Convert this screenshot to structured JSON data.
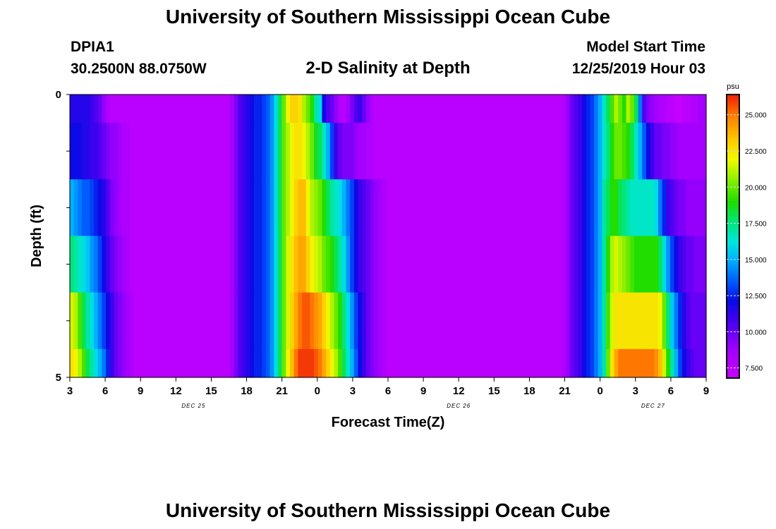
{
  "header": {
    "title": "University of Southern Mississippi Ocean Cube",
    "station": "DPIA1",
    "coords": "30.2500N 88.0750W",
    "subtitle": "2-D Salinity at Depth",
    "model_label": "Model Start Time",
    "model_time": "12/25/2019 Hour 03"
  },
  "footer": {
    "title": "University of Southern Mississippi Ocean Cube"
  },
  "chart_data": {
    "type": "heatmap",
    "xlabel": "Forecast Time(Z)",
    "ylabel": "Depth (ft)",
    "x_tick_labels": [
      "3",
      "6",
      "9",
      "12",
      "15",
      "18",
      "21",
      "0",
      "3",
      "6",
      "9",
      "12",
      "15",
      "18",
      "21",
      "0",
      "3",
      "6",
      "9"
    ],
    "x_range_hours": [
      0,
      54
    ],
    "day_labels": [
      {
        "text": "DEC 25",
        "hour": 10.5
      },
      {
        "text": "DEC 26",
        "hour": 33
      },
      {
        "text": "DEC 27",
        "hour": 49.5
      }
    ],
    "y_tick_labels": [
      "0",
      "5"
    ],
    "ylim": [
      0,
      5
    ],
    "colorbar": {
      "unit": "psu",
      "ticks": [
        "25.000",
        "22.500",
        "20.000",
        "17.500",
        "15.000",
        "12.500",
        "10.000",
        "7.500"
      ],
      "range": [
        6.8,
        26.4
      ]
    },
    "rows": [
      {
        "depth": 0.5,
        "values": [
          11.5,
          11.5,
          11.5,
          11.5,
          11.5,
          11.0,
          10.5,
          10.0,
          9.0,
          8.0,
          7.5,
          7.5,
          7.5,
          7.5,
          7.5,
          7.5,
          7.5,
          7.5,
          7.5,
          7.5,
          7.5,
          7.5,
          7.5,
          7.5,
          7.5,
          7.5,
          7.5,
          7.5,
          7.5,
          7.5,
          7.5,
          7.5,
          7.5,
          7.5,
          7.5,
          7.5,
          7.5,
          7.5,
          7.5,
          7.5,
          8.5,
          9.5,
          10.5,
          11.0,
          11.5,
          12.0,
          12.5,
          12.5,
          13.0,
          13.5,
          14.5,
          16.0,
          18.0,
          20.0,
          22.0,
          23.0,
          23.0,
          22.5,
          21.0,
          20.0,
          19.0,
          17.0,
          16.0,
          12.0,
          10.5,
          10.0,
          9.0,
          8.0,
          7.5,
          8.5,
          9.5,
          10.5,
          11.0,
          10.0,
          9.0,
          8.0,
          7.5,
          7.5,
          7.5,
          7.5,
          7.5,
          7.5,
          7.5,
          7.5,
          7.5,
          7.5,
          7.5,
          7.5,
          7.5,
          7.5,
          7.5,
          7.5,
          7.5,
          7.5,
          7.5,
          7.5,
          7.5,
          7.5,
          7.5,
          7.5,
          7.5,
          7.5,
          7.5,
          7.5,
          7.5,
          7.5,
          7.5,
          7.5,
          7.5,
          7.5,
          7.5,
          7.5,
          7.5,
          7.5,
          7.5,
          7.5,
          7.5,
          7.5,
          7.5,
          7.5,
          7.5,
          7.5,
          7.5,
          8.0,
          9.0,
          10.0,
          10.5,
          11.0,
          12.0,
          12.5,
          13.0,
          14.0,
          15.0,
          16.5,
          18.0,
          19.5,
          21.0,
          20.0,
          19.0,
          21.0,
          20.0,
          18.0,
          14.0,
          10.5,
          9.5,
          9.0,
          8.5,
          8.0,
          8.0,
          7.5,
          7.5,
          7.0,
          7.0,
          7.5,
          7.5,
          8.0,
          8.0,
          8.5,
          8.5
        ]
      },
      {
        "depth": 1.5,
        "values": [
          12.0,
          12.0,
          12.0,
          11.5,
          11.5,
          11.0,
          11.0,
          10.5,
          10.0,
          9.5,
          9.0,
          9.0,
          8.5,
          8.0,
          8.0,
          7.5,
          7.5,
          7.5,
          7.5,
          7.5,
          7.5,
          7.5,
          7.5,
          7.5,
          7.5,
          7.5,
          7.5,
          7.5,
          7.5,
          7.5,
          7.5,
          7.5,
          7.5,
          7.5,
          7.5,
          7.5,
          7.5,
          7.5,
          7.5,
          7.5,
          8.5,
          9.5,
          10.5,
          11.0,
          11.5,
          12.0,
          12.5,
          12.5,
          13.0,
          13.5,
          14.5,
          16.0,
          18.0,
          20.0,
          21.0,
          22.0,
          22.5,
          22.5,
          22.0,
          21.0,
          20.0,
          18.5,
          18.0,
          16.5,
          15.0,
          13.0,
          11.0,
          10.0,
          9.5,
          9.5,
          9.5,
          9.0,
          8.5,
          8.5,
          8.0,
          8.0,
          7.5,
          7.5,
          7.5,
          7.5,
          7.5,
          7.5,
          7.5,
          7.5,
          7.5,
          7.5,
          7.5,
          7.5,
          7.5,
          7.5,
          7.5,
          7.5,
          7.5,
          7.5,
          7.5,
          7.5,
          7.5,
          7.5,
          7.5,
          7.5,
          7.5,
          7.5,
          7.5,
          7.5,
          7.5,
          7.5,
          7.5,
          7.5,
          7.5,
          7.5,
          7.5,
          7.5,
          7.5,
          7.5,
          7.5,
          7.5,
          7.5,
          7.5,
          7.5,
          7.5,
          7.5,
          7.5,
          7.5,
          8.0,
          9.0,
          10.0,
          10.5,
          11.0,
          12.0,
          12.5,
          13.0,
          14.0,
          15.0,
          16.5,
          17.5,
          19.0,
          20.0,
          20.0,
          19.5,
          19.0,
          18.0,
          16.5,
          15.0,
          13.5,
          12.0,
          11.0,
          10.0,
          10.0,
          9.5,
          9.5,
          9.0,
          9.0,
          8.5,
          8.5,
          8.5,
          8.5,
          8.5,
          8.5,
          8.5
        ]
      },
      {
        "depth": 2.5,
        "values": [
          15.0,
          14.5,
          14.0,
          13.5,
          13.5,
          13.0,
          12.5,
          12.0,
          11.5,
          10.5,
          9.5,
          9.0,
          8.5,
          8.0,
          8.0,
          7.5,
          7.5,
          7.5,
          7.5,
          7.5,
          7.5,
          7.5,
          7.5,
          7.5,
          7.5,
          7.5,
          7.5,
          7.5,
          7.5,
          7.5,
          7.5,
          7.5,
          7.5,
          7.5,
          7.5,
          7.5,
          7.5,
          7.5,
          7.5,
          7.5,
          8.5,
          9.5,
          10.5,
          11.0,
          11.5,
          12.0,
          12.5,
          12.5,
          13.0,
          13.5,
          14.5,
          16.0,
          18.0,
          20.0,
          21.0,
          22.0,
          23.0,
          23.5,
          23.5,
          22.0,
          21.0,
          20.5,
          20.0,
          19.0,
          18.0,
          17.0,
          16.5,
          16.0,
          15.0,
          14.0,
          13.0,
          12.0,
          11.0,
          10.5,
          10.0,
          9.5,
          9.0,
          8.5,
          8.0,
          7.5,
          7.5,
          7.5,
          7.5,
          7.5,
          7.5,
          7.5,
          7.5,
          7.5,
          7.5,
          7.5,
          7.5,
          7.5,
          7.5,
          7.5,
          7.5,
          7.5,
          7.5,
          7.5,
          7.5,
          7.5,
          7.5,
          7.5,
          7.5,
          7.5,
          7.5,
          7.5,
          7.5,
          7.5,
          7.5,
          7.5,
          7.5,
          7.5,
          7.5,
          7.5,
          7.5,
          7.5,
          7.5,
          7.5,
          7.5,
          7.5,
          7.5,
          7.5,
          7.5,
          8.0,
          9.0,
          10.0,
          10.5,
          11.0,
          12.0,
          12.5,
          13.0,
          14.0,
          15.0,
          17.0,
          18.0,
          19.0,
          19.0,
          18.0,
          17.5,
          17.0,
          16.5,
          16.5,
          16.5,
          16.5,
          16.5,
          16.5,
          16.0,
          14.0,
          12.5,
          11.0,
          10.5,
          10.0,
          9.5,
          9.5,
          9.0,
          9.0,
          9.0,
          9.0,
          9.0
        ]
      },
      {
        "depth": 3.5,
        "values": [
          17.5,
          17.0,
          16.5,
          16.0,
          15.5,
          14.5,
          14.0,
          13.0,
          12.0,
          11.0,
          10.0,
          9.5,
          9.0,
          8.5,
          8.0,
          7.5,
          7.5,
          7.5,
          7.5,
          7.5,
          7.5,
          7.5,
          7.5,
          7.5,
          7.5,
          7.5,
          7.5,
          7.5,
          7.5,
          7.5,
          7.5,
          7.5,
          7.5,
          7.5,
          7.5,
          7.5,
          7.5,
          7.5,
          7.5,
          7.5,
          8.5,
          9.5,
          10.5,
          11.0,
          11.5,
          12.0,
          12.5,
          12.5,
          13.0,
          13.5,
          14.5,
          16.0,
          18.0,
          20.0,
          21.5,
          22.5,
          23.5,
          24.0,
          24.0,
          23.0,
          22.0,
          21.5,
          21.0,
          20.0,
          19.5,
          19.0,
          18.0,
          17.0,
          16.0,
          14.5,
          13.0,
          12.0,
          11.0,
          10.5,
          10.0,
          9.5,
          9.0,
          8.5,
          8.0,
          7.5,
          7.5,
          7.5,
          7.5,
          7.5,
          7.5,
          7.5,
          7.5,
          7.5,
          7.5,
          7.5,
          7.5,
          7.5,
          7.5,
          7.5,
          7.5,
          7.5,
          7.5,
          7.5,
          7.5,
          7.5,
          7.5,
          7.5,
          7.5,
          7.5,
          7.5,
          7.5,
          7.5,
          7.5,
          7.5,
          7.5,
          7.5,
          7.5,
          7.5,
          7.5,
          7.5,
          7.5,
          7.5,
          7.5,
          7.5,
          7.5,
          7.5,
          7.5,
          7.5,
          8.0,
          9.0,
          10.0,
          10.5,
          11.0,
          12.0,
          12.5,
          13.0,
          14.0,
          15.0,
          17.0,
          19.0,
          21.0,
          21.5,
          21.0,
          20.5,
          20.0,
          19.5,
          19.0,
          19.0,
          19.0,
          19.0,
          19.0,
          19.0,
          18.0,
          16.0,
          14.5,
          13.0,
          12.0,
          11.0,
          10.5,
          10.0,
          10.0,
          9.5,
          9.5,
          9.5
        ]
      },
      {
        "depth": 4.5,
        "values": [
          21.5,
          21.0,
          19.5,
          18.0,
          17.0,
          16.0,
          15.0,
          14.0,
          13.0,
          12.0,
          11.0,
          10.0,
          9.5,
          9.0,
          8.5,
          8.0,
          7.5,
          7.5,
          7.5,
          7.5,
          7.5,
          7.5,
          7.5,
          7.5,
          7.5,
          7.5,
          7.5,
          7.5,
          7.5,
          7.5,
          7.5,
          7.5,
          7.5,
          7.5,
          7.5,
          7.5,
          7.5,
          7.5,
          7.5,
          7.5,
          8.5,
          9.5,
          10.5,
          11.0,
          11.5,
          12.0,
          12.5,
          12.5,
          13.0,
          13.5,
          14.5,
          16.0,
          18.0,
          20.0,
          21.5,
          23.0,
          24.0,
          25.0,
          25.5,
          25.5,
          25.0,
          24.5,
          24.0,
          23.0,
          22.0,
          21.0,
          20.0,
          19.0,
          17.5,
          16.0,
          14.5,
          13.0,
          12.0,
          11.0,
          10.0,
          9.5,
          9.0,
          8.5,
          8.0,
          7.5,
          7.5,
          7.5,
          7.5,
          7.5,
          7.5,
          7.5,
          7.5,
          7.5,
          7.5,
          7.5,
          7.5,
          7.5,
          7.5,
          7.5,
          7.5,
          7.5,
          7.5,
          7.5,
          7.5,
          7.5,
          7.5,
          7.5,
          7.5,
          7.5,
          7.5,
          7.5,
          7.5,
          7.5,
          7.5,
          7.5,
          7.5,
          7.5,
          7.5,
          7.5,
          7.5,
          7.5,
          7.5,
          7.5,
          7.5,
          7.5,
          7.5,
          7.5,
          7.5,
          8.0,
          9.0,
          10.0,
          10.5,
          11.0,
          12.0,
          12.5,
          13.0,
          14.0,
          15.0,
          17.0,
          19.5,
          21.5,
          22.5,
          22.5,
          22.5,
          22.5,
          22.5,
          22.5,
          22.5,
          22.5,
          22.5,
          22.5,
          22.5,
          22.0,
          20.0,
          17.5,
          15.5,
          14.0,
          12.5,
          11.5,
          10.5,
          10.0,
          10.0,
          10.0,
          10.0
        ]
      },
      {
        "depth": 5.0,
        "values": [
          22.5,
          22.0,
          21.0,
          19.5,
          18.0,
          17.0,
          16.0,
          15.0,
          14.0,
          12.5,
          11.0,
          10.0,
          9.5,
          9.0,
          8.5,
          8.0,
          7.5,
          7.5,
          7.5,
          7.5,
          7.5,
          7.5,
          7.5,
          7.5,
          7.5,
          7.5,
          7.5,
          7.5,
          7.5,
          7.5,
          7.5,
          7.5,
          7.5,
          7.5,
          7.5,
          7.5,
          7.5,
          7.5,
          7.5,
          7.5,
          8.5,
          9.5,
          10.5,
          11.0,
          11.5,
          12.0,
          12.5,
          12.5,
          13.0,
          13.5,
          14.5,
          16.0,
          18.0,
          20.0,
          22.0,
          23.5,
          25.0,
          26.0,
          26.0,
          26.0,
          26.0,
          25.5,
          25.0,
          24.0,
          23.0,
          22.0,
          21.0,
          19.5,
          18.0,
          16.5,
          15.0,
          13.5,
          12.0,
          11.0,
          10.0,
          9.5,
          9.0,
          8.5,
          8.0,
          7.5,
          7.5,
          7.5,
          7.5,
          7.5,
          7.5,
          7.5,
          7.5,
          7.5,
          7.5,
          7.5,
          7.5,
          7.5,
          7.5,
          7.5,
          7.5,
          7.5,
          7.5,
          7.5,
          7.5,
          7.5,
          7.5,
          7.5,
          7.5,
          7.5,
          7.5,
          7.5,
          7.5,
          7.5,
          7.5,
          7.5,
          7.5,
          7.5,
          7.5,
          7.5,
          7.5,
          7.5,
          7.5,
          7.5,
          7.5,
          7.5,
          7.5,
          7.5,
          7.5,
          8.0,
          9.0,
          10.0,
          10.5,
          11.0,
          12.0,
          12.5,
          13.0,
          14.0,
          15.0,
          17.0,
          20.0,
          22.5,
          24.0,
          25.0,
          25.0,
          25.0,
          25.0,
          25.0,
          25.0,
          25.0,
          25.0,
          25.0,
          24.5,
          23.5,
          21.5,
          19.0,
          17.0,
          15.0,
          13.0,
          12.0,
          11.0,
          10.5,
          10.0,
          10.0,
          10.0
        ]
      }
    ]
  }
}
